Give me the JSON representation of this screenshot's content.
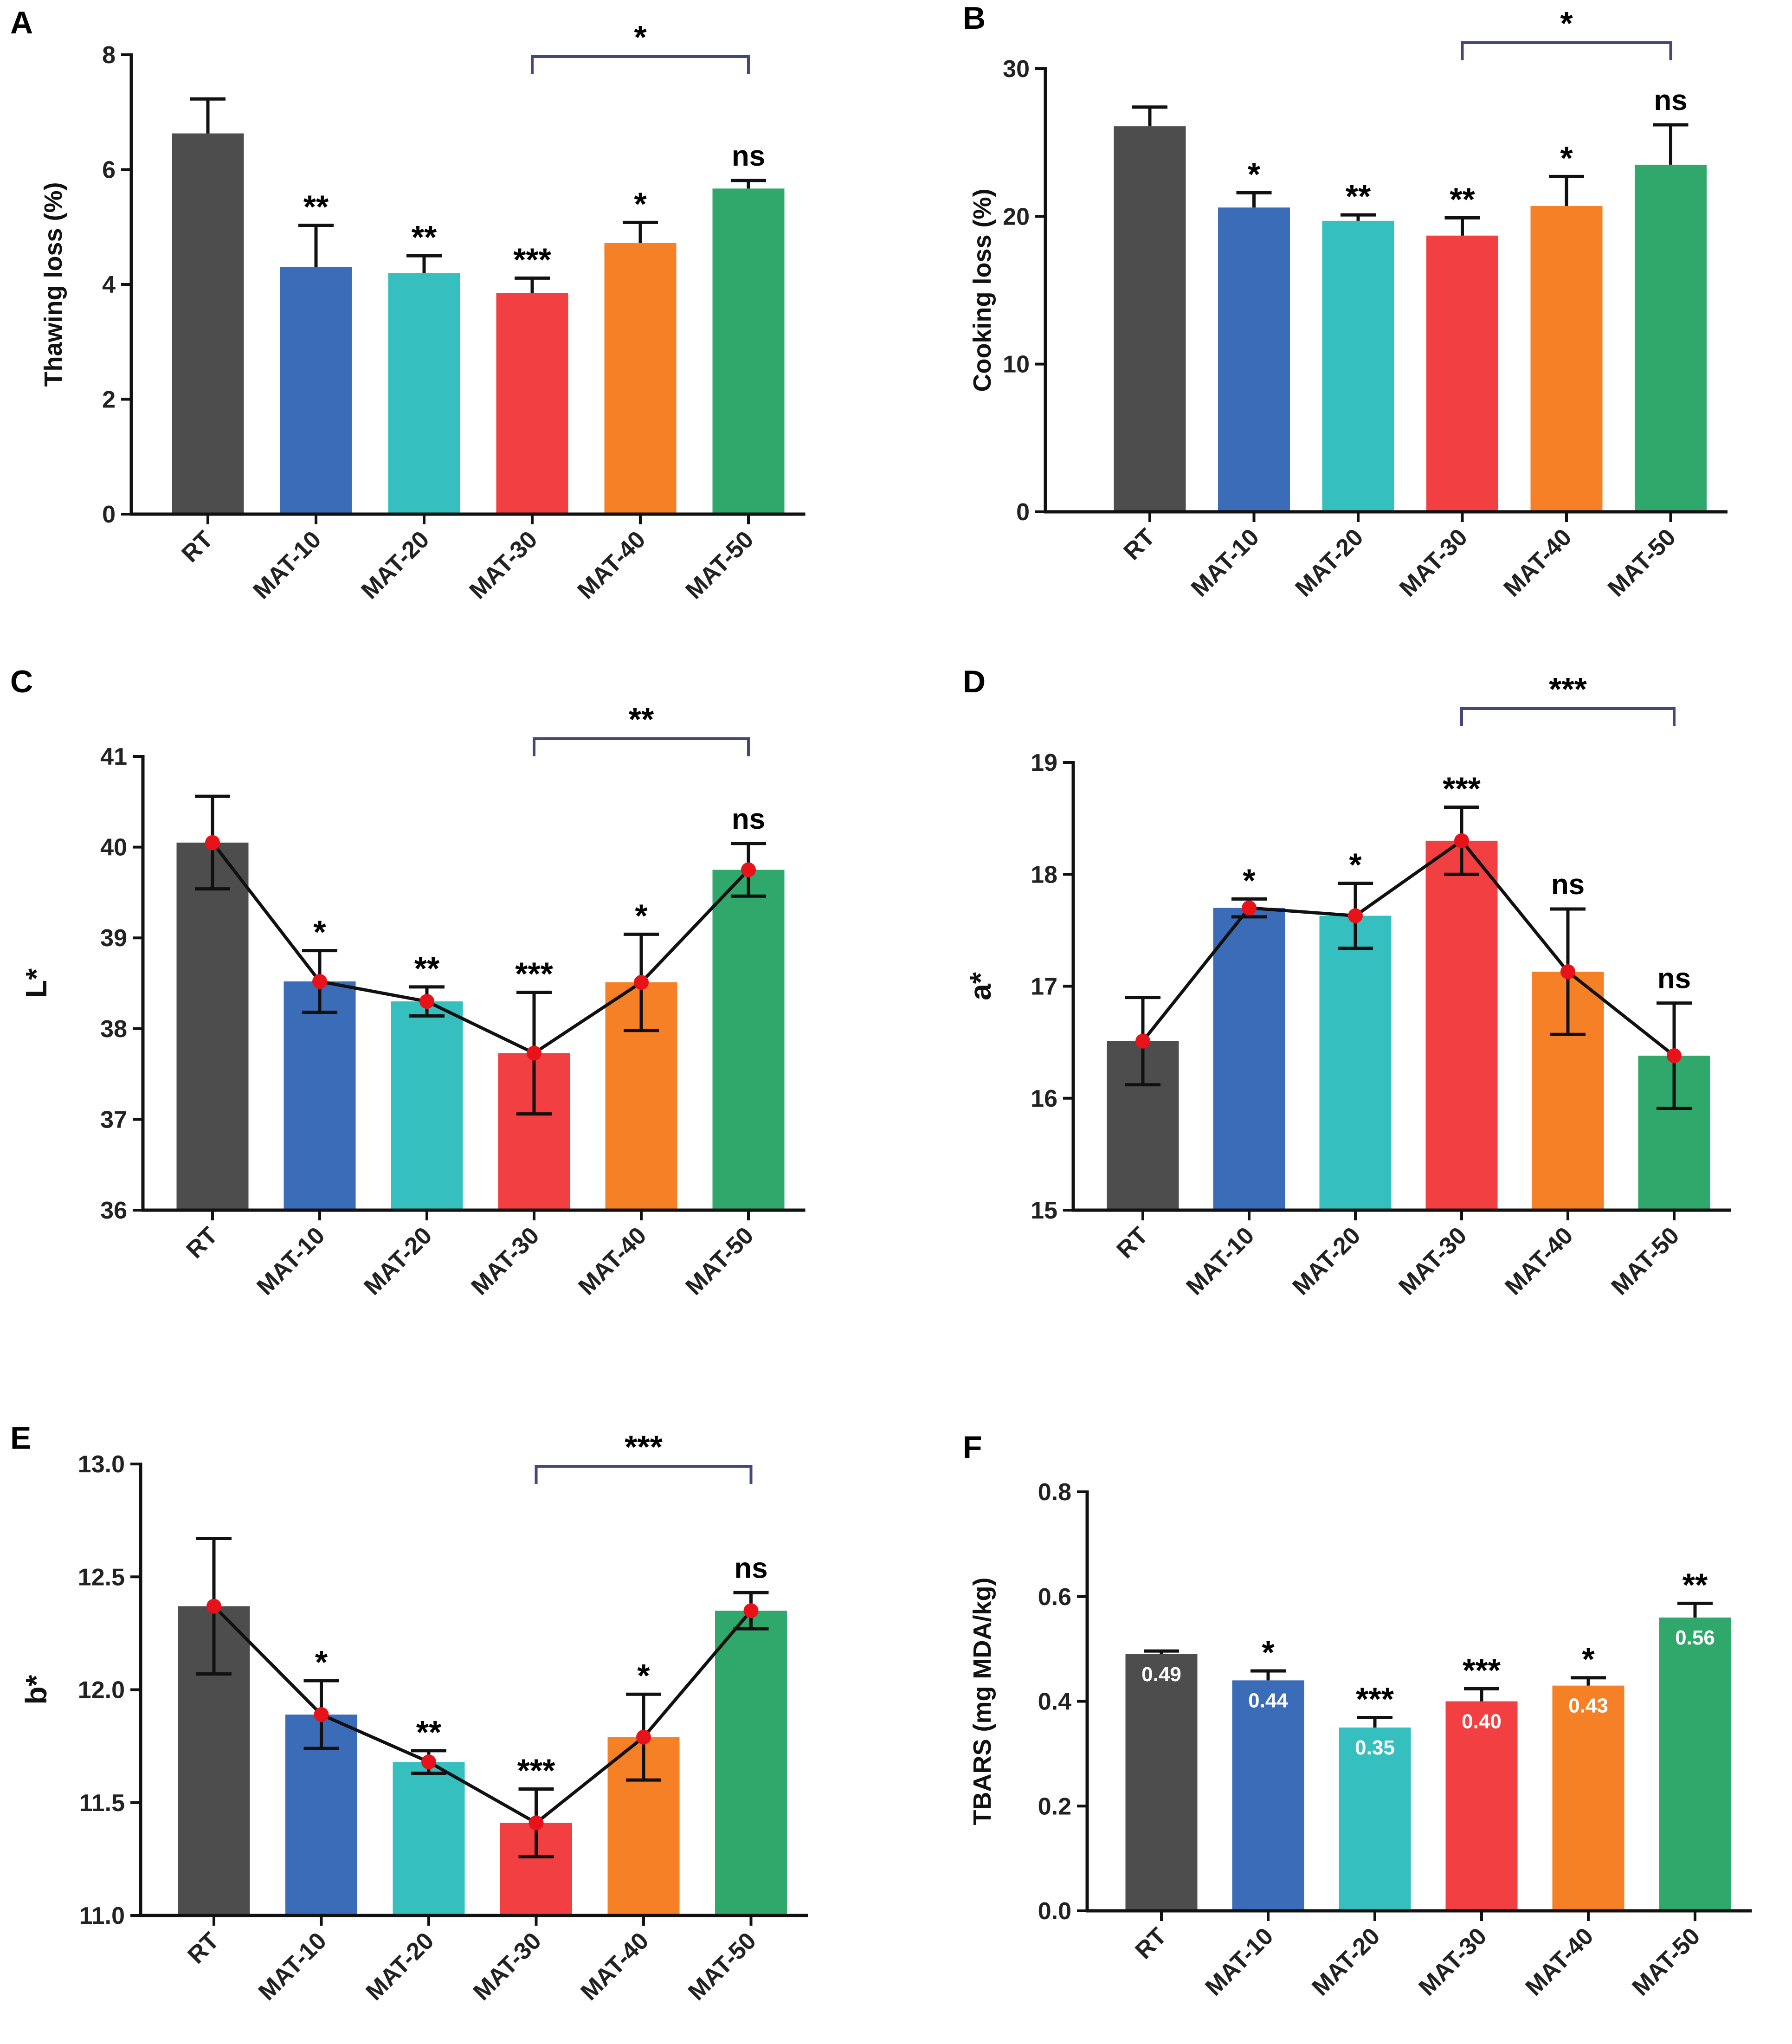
{
  "figure": {
    "colors": {
      "RT": "#4d4d4d",
      "MAT-10": "#3b6cb7",
      "MAT-20": "#35bfbf",
      "MAT-30": "#f23f42",
      "MAT-40": "#f58025",
      "MAT-50": "#31a86b",
      "bracket": "#44477a",
      "point": "#e8121a"
    }
  },
  "chart_data": [
    {
      "panel": "A",
      "type": "bar",
      "ylabel": "Thawing loss (%)",
      "categories": [
        "RT",
        "MAT-10",
        "MAT-20",
        "MAT-30",
        "MAT-40",
        "MAT-50"
      ],
      "values": [
        6.63,
        4.3,
        4.2,
        3.85,
        4.72,
        5.67
      ],
      "errors": [
        0.6,
        0.73,
        0.3,
        0.26,
        0.36,
        0.14
      ],
      "significance": [
        "",
        "**",
        "**",
        "***",
        "*",
        "ns"
      ],
      "bracket": {
        "from": "MAT-30",
        "to": "MAT-50",
        "label": "*"
      },
      "ylim": [
        0,
        8
      ],
      "yticks": [
        0,
        2,
        4,
        6,
        8
      ],
      "tick_labels": [
        "0",
        "2",
        "4",
        "6",
        "8"
      ],
      "line": false
    },
    {
      "panel": "B",
      "type": "bar",
      "ylabel": "Cooking loss (%)",
      "categories": [
        "RT",
        "MAT-10",
        "MAT-20",
        "MAT-30",
        "MAT-40",
        "MAT-50"
      ],
      "values": [
        26.1,
        20.6,
        19.7,
        18.7,
        20.7,
        23.5
      ],
      "errors": [
        1.3,
        1.0,
        0.4,
        1.2,
        2.0,
        2.7
      ],
      "significance": [
        "",
        "*",
        "**",
        "**",
        "*",
        "ns"
      ],
      "bracket": {
        "from": "MAT-30",
        "to": "MAT-50",
        "label": "*"
      },
      "ylim": [
        0,
        30
      ],
      "yticks": [
        0,
        10,
        20,
        30
      ],
      "tick_labels": [
        "0",
        "10",
        "20",
        "30"
      ],
      "line": false
    },
    {
      "panel": "C",
      "type": "bar",
      "ylabel": "L*",
      "categories": [
        "RT",
        "MAT-10",
        "MAT-20",
        "MAT-30",
        "MAT-40",
        "MAT-50"
      ],
      "values": [
        40.05,
        38.52,
        38.3,
        37.73,
        38.51,
        39.75
      ],
      "errors": [
        0.51,
        0.34,
        0.16,
        0.67,
        0.53,
        0.29
      ],
      "significance": [
        "",
        "*",
        "**",
        "***",
        "*",
        "ns"
      ],
      "bracket": {
        "from": "MAT-30",
        "to": "MAT-50",
        "label": "**"
      },
      "ylim": [
        36,
        41
      ],
      "yticks": [
        36,
        37,
        38,
        39,
        40,
        41
      ],
      "tick_labels": [
        "36",
        "37",
        "38",
        "39",
        "40",
        "41"
      ],
      "line": true
    },
    {
      "panel": "D",
      "type": "bar",
      "ylabel": "a*",
      "categories": [
        "RT",
        "MAT-10",
        "MAT-20",
        "MAT-30",
        "MAT-40",
        "MAT-50"
      ],
      "values": [
        16.51,
        17.7,
        17.63,
        18.3,
        17.13,
        16.38
      ],
      "errors": [
        0.39,
        0.08,
        0.29,
        0.3,
        0.56,
        0.47
      ],
      "significance": [
        "",
        "*",
        "*",
        "***",
        "ns",
        "ns"
      ],
      "bracket": {
        "from": "MAT-30",
        "to": "MAT-50",
        "label": "***"
      },
      "ylim": [
        15,
        19
      ],
      "yticks": [
        15,
        16,
        17,
        18,
        19
      ],
      "tick_labels": [
        "15",
        "16",
        "17",
        "18",
        "19"
      ],
      "line": true
    },
    {
      "panel": "E",
      "type": "bar",
      "ylabel": "b*",
      "categories": [
        "RT",
        "MAT-10",
        "MAT-20",
        "MAT-30",
        "MAT-40",
        "MAT-50"
      ],
      "values": [
        12.37,
        11.89,
        11.68,
        11.41,
        11.79,
        12.35
      ],
      "errors": [
        0.3,
        0.15,
        0.05,
        0.15,
        0.19,
        0.08
      ],
      "significance": [
        "",
        "*",
        "**",
        "***",
        "*",
        "ns"
      ],
      "bracket": {
        "from": "MAT-30",
        "to": "MAT-50",
        "label": "***"
      },
      "ylim": [
        11.0,
        13.0
      ],
      "yticks": [
        11.0,
        11.5,
        12.0,
        12.5,
        13.0
      ],
      "tick_labels": [
        "11.0",
        "11.5",
        "12.0",
        "12.5",
        "13.0"
      ],
      "line": true
    },
    {
      "panel": "F",
      "type": "bar",
      "ylabel": "TBARS (mg MDA/kg)",
      "categories": [
        "RT",
        "MAT-10",
        "MAT-20",
        "MAT-30",
        "MAT-40",
        "MAT-50"
      ],
      "values": [
        0.49,
        0.44,
        0.35,
        0.4,
        0.43,
        0.56
      ],
      "value_labels": [
        "0.49",
        "0.44",
        "0.35",
        "0.40",
        "0.43",
        "0.56"
      ],
      "errors": [
        0.006,
        0.018,
        0.019,
        0.024,
        0.015,
        0.027
      ],
      "significance": [
        "",
        "*",
        "***",
        "***",
        "*",
        "**"
      ],
      "bracket": null,
      "ylim": [
        0.0,
        0.8
      ],
      "yticks": [
        0.0,
        0.2,
        0.4,
        0.6,
        0.8
      ],
      "tick_labels": [
        "0.0",
        "0.2",
        "0.4",
        "0.6",
        "0.8"
      ],
      "line": false
    }
  ]
}
